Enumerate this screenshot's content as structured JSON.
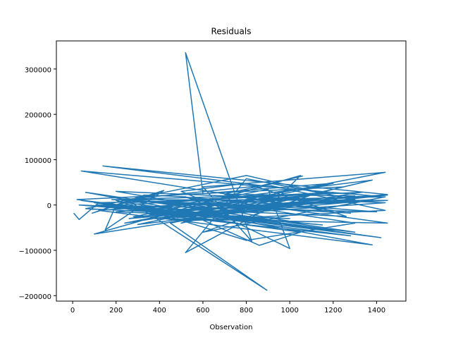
{
  "chart_data": {
    "type": "line",
    "title": "Residuals",
    "xlabel": "Observation",
    "ylabel": "",
    "xlim": [
      -75,
      1535
    ],
    "ylim": [
      -212000,
      362000
    ],
    "x_ticks": [
      0,
      200,
      400,
      600,
      800,
      1000,
      1200,
      1400
    ],
    "y_ticks": [
      -200000,
      -100000,
      0,
      100000,
      200000,
      300000
    ],
    "x_tick_labels": [
      "0",
      "200",
      "400",
      "600",
      "800",
      "1000",
      "1200",
      "1400"
    ],
    "y_tick_labels": [
      "−200000",
      "−100000",
      "0",
      "100000",
      "200000",
      "300000"
    ],
    "grid": false,
    "series": [
      {
        "color": "#1f77b4",
        "x": [
          5,
          30,
          120,
          200,
          150,
          420,
          90,
          330,
          520,
          660,
          1260,
          260,
          980,
          180,
          1100,
          40,
          1390,
          300,
          1200,
          600,
          520,
          825,
          600,
          1440,
          240,
          1060,
          120,
          1380,
          60,
          1300,
          400,
          1450,
          180,
          900,
          1050,
          100,
          1330,
          250,
          1420,
          20,
          1250,
          500,
          1000,
          140,
          1450,
          350,
          1280,
          40,
          1200,
          700,
          1380,
          200,
          1000,
          60,
          800,
          1320,
          480,
          1450,
          300,
          1150,
          110,
          1400,
          500,
          1300,
          800,
          200,
          900,
          1440,
          520,
          1000,
          520,
          800,
          1300,
          380,
          1450,
          630,
          1200,
          150,
          1050,
          860,
          420,
          1280,
          700,
          1140,
          1380,
          280,
          900,
          1000,
          760,
          100,
          1440,
          600,
          1100,
          450,
          895,
          250,
          700,
          500,
          800,
          1260,
          30,
          1050,
          200,
          1440,
          380,
          1300,
          700,
          1060
        ],
        "y": [
          -18000,
          -32000,
          5000,
          0,
          -55000,
          32000,
          -18000,
          22000,
          18000,
          -9000,
          12000,
          -30000,
          22000,
          12000,
          -6000,
          75000,
          20000,
          -43000,
          48000,
          25000,
          336000,
          -80000,
          40000,
          72000,
          -40000,
          20000,
          -12000,
          -88000,
          28000,
          -60000,
          -12000,
          10000,
          12000,
          -5000,
          65000,
          -64000,
          28000,
          5000,
          -72000,
          12000,
          40000,
          -40000,
          35000,
          86000,
          23000,
          -20000,
          -68000,
          10000,
          -55000,
          -22000,
          55000,
          -15000,
          -30000,
          -8000,
          65000,
          8000,
          -28000,
          22000,
          -5000,
          -44000,
          0,
          -15000,
          18000,
          -40000,
          -78000,
          10000,
          44000,
          -12000,
          -35000,
          18000,
          -105000,
          58000,
          12000,
          -30000,
          -40000,
          14000,
          28000,
          -2000,
          -60000,
          -89000,
          5000,
          -18000,
          23000,
          -10000,
          12000,
          -26000,
          35000,
          -96000,
          -40000,
          5000,
          18000,
          -60000,
          22000,
          -40000,
          -188000,
          12000,
          -10000,
          30000,
          48000,
          -25000,
          0,
          -40000,
          30000,
          5000,
          -30000,
          20000,
          24000,
          64000
        ]
      }
    ]
  }
}
